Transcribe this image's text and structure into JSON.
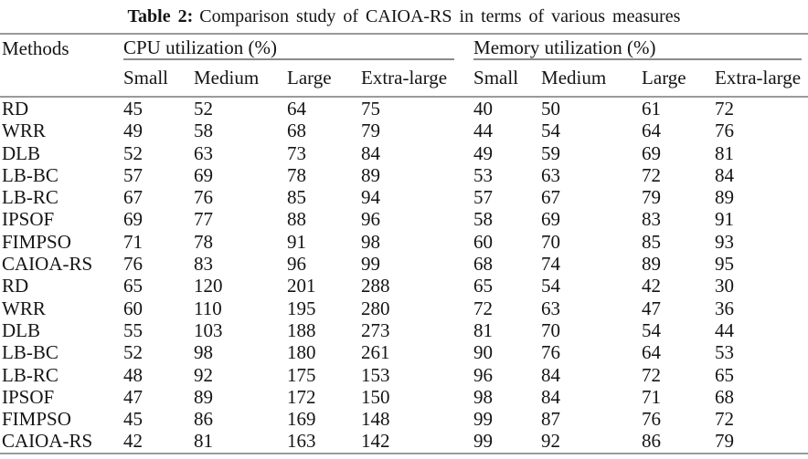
{
  "title": {
    "label": "Table 2:",
    "text": "Comparison study of CAIOA-RS in terms of various measures"
  },
  "colors": {
    "rule": "#9a9a9a",
    "text": "#141414",
    "background": "#ffffff"
  },
  "table": {
    "methods_header": "Methods",
    "groups": [
      {
        "label": "CPU utilization (%)"
      },
      {
        "label": "Memory utilization (%)"
      }
    ],
    "sub_headers": [
      "Small",
      "Medium",
      "Large",
      "Extra-large",
      "Small",
      "Medium",
      "Large",
      "Extra-large"
    ],
    "rows": [
      {
        "method": "RD",
        "values": [
          45,
          52,
          64,
          75,
          40,
          50,
          61,
          72
        ]
      },
      {
        "method": "WRR",
        "values": [
          49,
          58,
          68,
          79,
          44,
          54,
          64,
          76
        ]
      },
      {
        "method": "DLB",
        "values": [
          52,
          63,
          73,
          84,
          49,
          59,
          69,
          81
        ]
      },
      {
        "method": "LB-BC",
        "values": [
          57,
          69,
          78,
          89,
          53,
          63,
          72,
          84
        ]
      },
      {
        "method": "LB-RC",
        "values": [
          67,
          76,
          85,
          94,
          57,
          67,
          79,
          89
        ]
      },
      {
        "method": "IPSOF",
        "values": [
          69,
          77,
          88,
          96,
          58,
          69,
          83,
          91
        ]
      },
      {
        "method": "FIMPSO",
        "values": [
          71,
          78,
          91,
          98,
          60,
          70,
          85,
          93
        ]
      },
      {
        "method": "CAIOA-RS",
        "values": [
          76,
          83,
          96,
          99,
          68,
          74,
          89,
          95
        ]
      },
      {
        "method": "RD",
        "values": [
          65,
          120,
          201,
          288,
          65,
          54,
          42,
          30
        ]
      },
      {
        "method": "WRR",
        "values": [
          60,
          110,
          195,
          280,
          72,
          63,
          47,
          36
        ]
      },
      {
        "method": "DLB",
        "values": [
          55,
          103,
          188,
          273,
          81,
          70,
          54,
          44
        ]
      },
      {
        "method": "LB-BC",
        "values": [
          52,
          98,
          180,
          261,
          90,
          76,
          64,
          53
        ]
      },
      {
        "method": "LB-RC",
        "values": [
          48,
          92,
          175,
          153,
          96,
          84,
          72,
          65
        ]
      },
      {
        "method": "IPSOF",
        "values": [
          47,
          89,
          172,
          150,
          98,
          84,
          71,
          68
        ]
      },
      {
        "method": "FIMPSO",
        "values": [
          45,
          86,
          169,
          148,
          99,
          87,
          76,
          72
        ]
      },
      {
        "method": "CAIOA-RS",
        "values": [
          42,
          81,
          163,
          142,
          99,
          92,
          86,
          79
        ]
      }
    ]
  }
}
